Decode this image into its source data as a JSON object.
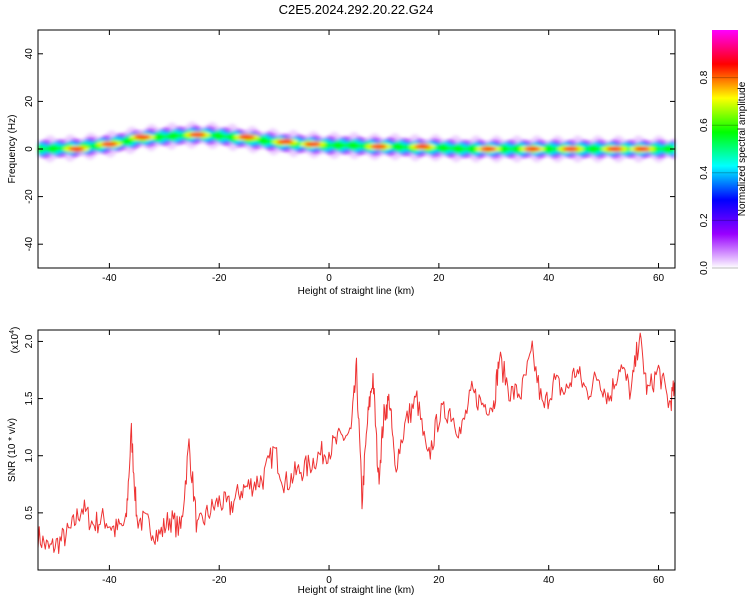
{
  "title": "C2E5.2024.292.20.22.G24",
  "chart_data": [
    {
      "type": "heatmap",
      "xlabel": "Height of straight line (km)",
      "ylabel": "Frequency (Hz)",
      "xlim": [
        -53,
        63
      ],
      "ylim": [
        -50,
        50
      ],
      "xticks": [
        -40,
        -20,
        0,
        20,
        40,
        60
      ],
      "yticks": [
        40,
        20,
        0,
        -20,
        -40
      ],
      "colorbar": {
        "label": "Normalized spectral amplitude",
        "range": [
          0.0,
          1.0
        ],
        "ticks": [
          0.0,
          0.2,
          0.4,
          0.6,
          0.8
        ],
        "colormap": [
          "#ffffff",
          "#9900ff",
          "#0000ff",
          "#00ffff",
          "#00ff00",
          "#ffff00",
          "#ff0000",
          "#ff00ff"
        ]
      },
      "ridge": {
        "x": [
          -52,
          -46,
          -40,
          -34,
          -28,
          -24,
          -20,
          -16,
          -12,
          -8,
          -4,
          0,
          4,
          8,
          12,
          16,
          20,
          24,
          30,
          40,
          50,
          62
        ],
        "freq": [
          0,
          0.5,
          2,
          4.5,
          5.5,
          6,
          5.5,
          4.5,
          3.5,
          2.5,
          2,
          1.5,
          1.5,
          1,
          1,
          0.5,
          0.5,
          0,
          0,
          0,
          0,
          0
        ]
      },
      "hotspots": [
        {
          "x": -46,
          "freq": 0
        },
        {
          "x": -40,
          "freq": 2
        },
        {
          "x": -34,
          "freq": 5
        },
        {
          "x": -24,
          "freq": 6
        },
        {
          "x": -15,
          "freq": 5
        },
        {
          "x": -8,
          "freq": 3
        },
        {
          "x": -3,
          "freq": 2
        },
        {
          "x": 9,
          "freq": 1
        },
        {
          "x": 17,
          "freq": 1
        },
        {
          "x": 29,
          "freq": 0
        },
        {
          "x": 37,
          "freq": 0
        },
        {
          "x": 44,
          "freq": 0
        },
        {
          "x": 52,
          "freq": 0
        },
        {
          "x": 57,
          "freq": 0
        }
      ]
    },
    {
      "type": "line",
      "xlabel": "Height of straight line (km)",
      "ylabel": "SNR (10 * v/v)",
      "ylabel_scale": "(x10",
      "ylabel_exp": "4",
      "ylabel_close": ")",
      "xlim": [
        -53,
        63
      ],
      "ylim": [
        0.0,
        2.1
      ],
      "xticks": [
        -40,
        -20,
        0,
        20,
        40,
        60
      ],
      "yticks": [
        2.0,
        1.5,
        1.0,
        0.5
      ],
      "line_color": "#ee3333",
      "x": [
        -53,
        -51,
        -49,
        -47,
        -45,
        -43,
        -41,
        -39,
        -37,
        -36,
        -35,
        -33,
        -31,
        -29,
        -27,
        -25.5,
        -24,
        -22,
        -20,
        -18,
        -16,
        -14,
        -12,
        -10,
        -8,
        -6,
        -4,
        -2,
        0,
        2,
        4,
        5,
        6,
        7,
        8,
        9,
        10,
        11,
        12,
        14,
        16,
        18,
        20,
        22,
        24,
        26,
        28,
        30,
        31,
        33,
        35,
        37,
        39,
        41,
        43,
        45,
        47,
        49,
        51,
        53,
        55,
        56.5,
        58,
        60,
        62,
        63
      ],
      "snr": [
        0.3,
        0.18,
        0.25,
        0.35,
        0.55,
        0.4,
        0.45,
        0.35,
        0.4,
        1.2,
        0.45,
        0.4,
        0.3,
        0.45,
        0.35,
        1.1,
        0.35,
        0.5,
        0.6,
        0.55,
        0.7,
        0.75,
        0.8,
        1.05,
        0.75,
        0.85,
        0.9,
        1.0,
        1.05,
        1.15,
        1.2,
        1.75,
        0.6,
        1.3,
        1.7,
        0.8,
        1.35,
        1.5,
        0.9,
        1.3,
        1.5,
        0.95,
        1.35,
        1.4,
        1.2,
        1.55,
        1.45,
        1.45,
        1.85,
        1.55,
        1.55,
        1.9,
        1.4,
        1.65,
        1.55,
        1.75,
        1.55,
        1.7,
        1.5,
        1.8,
        1.55,
        2.05,
        1.55,
        1.75,
        1.45,
        1.6
      ]
    }
  ]
}
